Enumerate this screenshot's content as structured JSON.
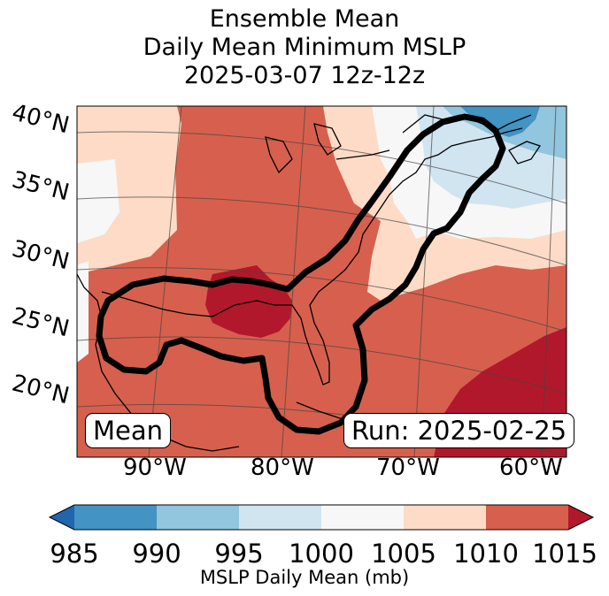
{
  "title": {
    "line1": "Ensemble Mean",
    "line2": "Daily Mean Minimum MSLP",
    "line3": "2025-03-07 12z-12z"
  },
  "latitude_labels": [
    "40°N",
    "35°N",
    "30°N",
    "25°N",
    "20°N"
  ],
  "longitude_labels": [
    "90°W",
    "80°W",
    "70°W",
    "60°W"
  ],
  "mean_box": "Mean",
  "run_box": "Run: 2025-02-25",
  "colorbar": {
    "ticks": [
      "985",
      "990",
      "995",
      "1000",
      "1005",
      "1010",
      "1015"
    ],
    "label": "MSLP Daily Mean (mb)",
    "colors": [
      "#2166ac",
      "#4393c3",
      "#92c5de",
      "#d1e5f0",
      "#f7f7f7",
      "#fddbc7",
      "#d6604d",
      "#b2182b"
    ]
  }
}
